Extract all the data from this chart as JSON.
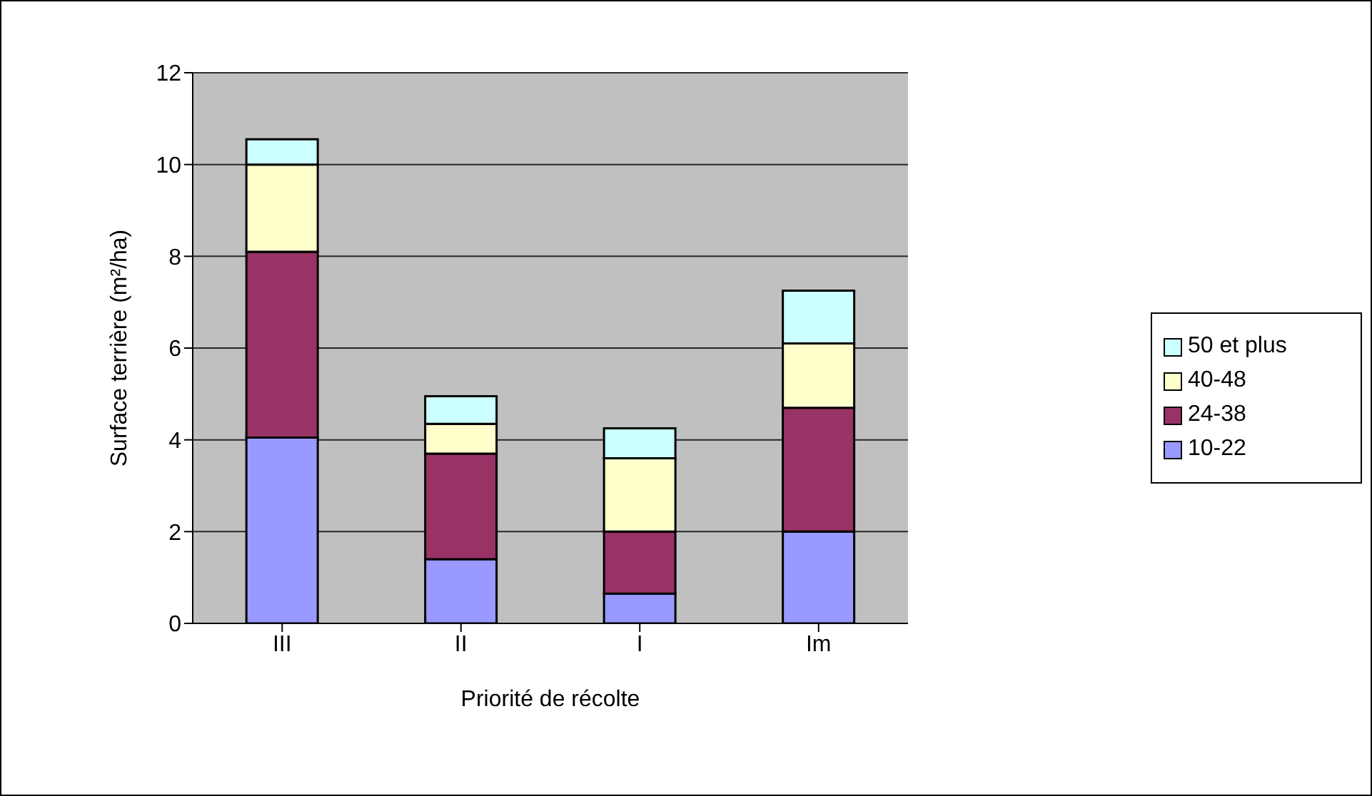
{
  "chart_data": {
    "type": "bar",
    "stacked": true,
    "xlabel": "Priorité de récolte",
    "ylabel": "Surface terrière (m²/ha)",
    "categories": [
      "III",
      "II",
      "I",
      "Im"
    ],
    "series": [
      {
        "name": "10-22",
        "color": "#9999ff",
        "values": [
          4.05,
          1.4,
          0.65,
          2.0
        ]
      },
      {
        "name": "24-38",
        "color": "#993366",
        "values": [
          4.05,
          2.3,
          1.35,
          2.7
        ]
      },
      {
        "name": "40-48",
        "color": "#ffffcc",
        "values": [
          1.9,
          0.65,
          1.6,
          1.4
        ]
      },
      {
        "name": "50 et plus",
        "color": "#ccffff",
        "values": [
          0.55,
          0.6,
          0.65,
          1.15
        ]
      }
    ],
    "ylim": [
      0,
      12
    ],
    "yticks": [
      0,
      2,
      4,
      6,
      8,
      10,
      12
    ],
    "grid": "y",
    "legend": "right"
  }
}
